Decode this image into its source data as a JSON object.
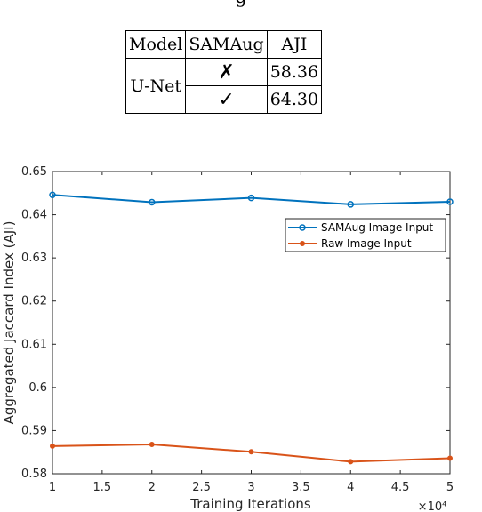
{
  "caption_fragment": "g",
  "table": {
    "headers": [
      "Model",
      "SAMAug",
      "AJI"
    ],
    "model": "U-Net",
    "rows": [
      {
        "samaug": "✗",
        "aji": "58.36"
      },
      {
        "samaug": "✓",
        "aji": "64.30"
      }
    ]
  },
  "chart_data": {
    "type": "line",
    "xlabel": "Training Iterations",
    "ylabel": "Aggregated Jaccard Index (AJI)",
    "x_multiplier": "×10⁴",
    "x": [
      1,
      2,
      3,
      4,
      5
    ],
    "xlim": [
      1,
      5
    ],
    "ylim": [
      0.58,
      0.65
    ],
    "xticks": [
      "1",
      "1.5",
      "2",
      "2.5",
      "3",
      "3.5",
      "4",
      "4.5",
      "5"
    ],
    "yticks": [
      "0.58",
      "0.59",
      "0.6",
      "0.61",
      "0.62",
      "0.63",
      "0.64",
      "0.65"
    ],
    "legend_position": "upper-right",
    "grid": false,
    "series": [
      {
        "name": "SAMAug Image Input",
        "color": "#0072BD",
        "marker": "circle",
        "values": [
          0.6446,
          0.6429,
          0.6439,
          0.6424,
          0.643
        ]
      },
      {
        "name": "Raw Image Input",
        "color": "#D95319",
        "marker": "dot",
        "values": [
          0.5864,
          0.5868,
          0.5851,
          0.5828,
          0.5836
        ]
      }
    ]
  }
}
